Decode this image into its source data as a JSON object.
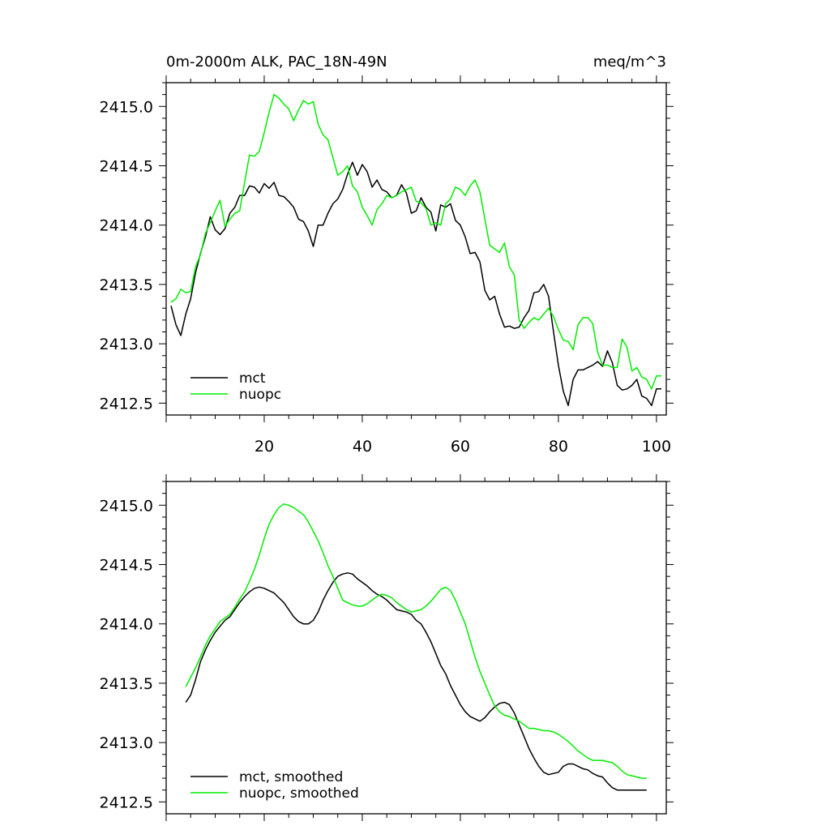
{
  "colors": {
    "mct": "#000000",
    "nuopc": "#00ee00",
    "frame": "#000000",
    "background": "#ffffff"
  },
  "header": {
    "title": "0m-2000m ALK, PAC_18N-49N",
    "units": "meq/m^3"
  },
  "chart_data": [
    {
      "type": "line",
      "title": "0m-2000m ALK, PAC_18N-49N",
      "units": "meq/m^3",
      "xlabel": "",
      "ylabel": "",
      "xlim": [
        0,
        102
      ],
      "ylim": [
        2412.4,
        2415.2
      ],
      "xticks": [
        20,
        40,
        60,
        80,
        100
      ],
      "xtick_labels": [
        "20",
        "40",
        "60",
        "80",
        "100"
      ],
      "yticks": [
        2412.5,
        2413.0,
        2413.5,
        2414.0,
        2414.5,
        2415.0
      ],
      "ytick_labels": [
        "2412.5",
        "2413.0",
        "2413.5",
        "2414.0",
        "2414.5",
        "2415.0"
      ],
      "legend": "bottom-left",
      "series": [
        {
          "name": "mct",
          "color": "#000000",
          "x": [
            1,
            2,
            3,
            4,
            5,
            6,
            7,
            8,
            9,
            10,
            11,
            12,
            13,
            14,
            15,
            16,
            17,
            18,
            19,
            20,
            21,
            22,
            23,
            24,
            25,
            26,
            27,
            28,
            29,
            30,
            31,
            32,
            33,
            34,
            35,
            36,
            37,
            38,
            39,
            40,
            41,
            42,
            43,
            44,
            45,
            46,
            47,
            48,
            49,
            50,
            51,
            52,
            53,
            54,
            55,
            56,
            57,
            58,
            59,
            60,
            61,
            62,
            63,
            64,
            65,
            66,
            67,
            68,
            69,
            70,
            71,
            72,
            73,
            74,
            75,
            76,
            77,
            78,
            79,
            80,
            81,
            82,
            83,
            84,
            85,
            86,
            87,
            88,
            89,
            90,
            91,
            92,
            93,
            94,
            95,
            96,
            97,
            98,
            99,
            100,
            101
          ],
          "values": [
            2413.32,
            2413.16,
            2413.07,
            2413.25,
            2413.38,
            2413.6,
            2413.76,
            2413.9,
            2414.07,
            2413.96,
            2413.92,
            2413.97,
            2414.1,
            2414.15,
            2414.25,
            2414.25,
            2414.33,
            2414.32,
            2414.27,
            2414.35,
            2414.31,
            2414.36,
            2414.25,
            2414.24,
            2414.2,
            2414.15,
            2414.05,
            2414.03,
            2413.95,
            2413.82,
            2414.0,
            2414.0,
            2414.1,
            2414.18,
            2414.22,
            2414.3,
            2414.43,
            2414.53,
            2414.42,
            2414.51,
            2414.45,
            2414.32,
            2414.38,
            2414.3,
            2414.28,
            2414.23,
            2414.25,
            2414.34,
            2414.27,
            2414.1,
            2414.12,
            2414.23,
            2414.15,
            2414.11,
            2413.95,
            2414.17,
            2414.15,
            2414.18,
            2414.04,
            2414.0,
            2413.9,
            2413.76,
            2413.77,
            2413.69,
            2413.45,
            2413.37,
            2413.4,
            2413.25,
            2413.14,
            2413.15,
            2413.13,
            2413.14,
            2413.22,
            2413.28,
            2413.43,
            2413.44,
            2413.5,
            2413.4,
            2413.1,
            2412.82,
            2412.6,
            2412.48,
            2412.7,
            2412.78,
            2412.78,
            2412.8,
            2412.82,
            2412.85,
            2412.81,
            2412.94,
            2412.84,
            2412.65,
            2412.61,
            2412.62,
            2412.65,
            2412.7,
            2412.56,
            2412.54,
            2412.48,
            2412.62,
            2412.62
          ]
        },
        {
          "name": "nuopc",
          "color": "#00ee00",
          "x": [
            1,
            2,
            3,
            4,
            5,
            6,
            7,
            8,
            9,
            10,
            11,
            12,
            13,
            14,
            15,
            16,
            17,
            18,
            19,
            20,
            21,
            22,
            23,
            24,
            25,
            26,
            27,
            28,
            29,
            30,
            31,
            32,
            33,
            34,
            35,
            36,
            37,
            38,
            39,
            40,
            41,
            42,
            43,
            44,
            45,
            46,
            47,
            48,
            49,
            50,
            51,
            52,
            53,
            54,
            55,
            56,
            57,
            58,
            59,
            60,
            61,
            62,
            63,
            64,
            65,
            66,
            67,
            68,
            69,
            70,
            71,
            72,
            73,
            74,
            75,
            76,
            77,
            78,
            79,
            80,
            81,
            82,
            83,
            84,
            85,
            86,
            87,
            88,
            89,
            90,
            91,
            92,
            93,
            94,
            95,
            96,
            97,
            98,
            99,
            100,
            101
          ],
          "values": [
            2413.35,
            2413.38,
            2413.46,
            2413.43,
            2413.44,
            2413.65,
            2413.75,
            2413.93,
            2414.02,
            2414.12,
            2414.21,
            2413.99,
            2414.05,
            2414.1,
            2414.12,
            2414.36,
            2414.59,
            2414.58,
            2414.62,
            2414.78,
            2414.95,
            2415.1,
            2415.07,
            2415.02,
            2414.98,
            2414.88,
            2414.97,
            2415.05,
            2415.02,
            2415.04,
            2414.85,
            2414.76,
            2414.72,
            2414.57,
            2414.42,
            2414.45,
            2414.5,
            2414.33,
            2414.28,
            2414.15,
            2414.08,
            2414.0,
            2414.13,
            2414.18,
            2414.25,
            2414.23,
            2414.25,
            2414.28,
            2414.3,
            2414.32,
            2414.2,
            2414.19,
            2414.14,
            2414.0,
            2414.02,
            2414.0,
            2414.18,
            2414.22,
            2414.32,
            2414.3,
            2414.25,
            2414.33,
            2414.38,
            2414.28,
            2414.05,
            2413.83,
            2413.8,
            2413.77,
            2413.85,
            2413.65,
            2413.58,
            2413.2,
            2413.13,
            2413.18,
            2413.22,
            2413.2,
            2413.25,
            2413.3,
            2413.23,
            2413.12,
            2413.03,
            2413.02,
            2412.95,
            2413.16,
            2413.22,
            2413.22,
            2413.17,
            2412.93,
            2412.82,
            2412.82,
            2412.8,
            2412.8,
            2413.04,
            2412.97,
            2412.77,
            2412.8,
            2412.72,
            2412.7,
            2412.62,
            2412.73,
            2412.73
          ]
        }
      ],
      "legend_labels": [
        "mct",
        "nuopc"
      ]
    },
    {
      "type": "line",
      "title": "",
      "xlabel": "",
      "ylabel": "",
      "xlim": [
        0,
        102
      ],
      "ylim": [
        2412.4,
        2415.2
      ],
      "xticks": [
        20,
        40,
        60,
        80,
        100
      ],
      "yticks": [
        2412.5,
        2413.0,
        2413.5,
        2414.0,
        2414.5,
        2415.0
      ],
      "ytick_labels": [
        "2412.5",
        "2413.0",
        "2413.5",
        "2414.0",
        "2414.5",
        "2415.0"
      ],
      "legend": "bottom-left",
      "series": [
        {
          "name": "mct, smoothed",
          "color": "#000000",
          "x": [
            4,
            5,
            6,
            7,
            8,
            9,
            10,
            11,
            12,
            13,
            14,
            15,
            16,
            17,
            18,
            19,
            20,
            21,
            22,
            23,
            24,
            25,
            26,
            27,
            28,
            29,
            30,
            31,
            32,
            33,
            34,
            35,
            36,
            37,
            38,
            39,
            40,
            41,
            42,
            43,
            44,
            45,
            46,
            47,
            48,
            49,
            50,
            51,
            52,
            53,
            54,
            55,
            56,
            57,
            58,
            59,
            60,
            61,
            62,
            63,
            64,
            65,
            66,
            67,
            68,
            69,
            70,
            71,
            72,
            73,
            74,
            75,
            76,
            77,
            78,
            79,
            80,
            81,
            82,
            83,
            84,
            85,
            86,
            87,
            88,
            89,
            90,
            91,
            92,
            93,
            94,
            95,
            96,
            97,
            98
          ],
          "values": [
            2413.34,
            2413.4,
            2413.53,
            2413.68,
            2413.78,
            2413.86,
            2413.93,
            2413.98,
            2414.03,
            2414.06,
            2414.12,
            2414.18,
            2414.23,
            2414.27,
            2414.3,
            2414.31,
            2414.3,
            2414.28,
            2414.26,
            2414.22,
            2414.18,
            2414.12,
            2414.06,
            2414.02,
            2414.0,
            2414.0,
            2414.03,
            2414.1,
            2414.2,
            2414.28,
            2414.35,
            2414.4,
            2414.42,
            2414.43,
            2414.42,
            2414.38,
            2414.35,
            2414.32,
            2414.28,
            2414.25,
            2414.23,
            2414.2,
            2414.16,
            2414.12,
            2414.11,
            2414.1,
            2414.08,
            2414.03,
            2414.0,
            2413.93,
            2413.85,
            2413.75,
            2413.65,
            2413.58,
            2413.48,
            2413.4,
            2413.32,
            2413.26,
            2413.22,
            2413.2,
            2413.18,
            2413.21,
            2413.26,
            2413.3,
            2413.33,
            2413.34,
            2413.32,
            2413.25,
            2413.15,
            2413.05,
            2412.95,
            2412.87,
            2412.8,
            2412.75,
            2412.73,
            2412.74,
            2412.75,
            2412.8,
            2412.82,
            2412.82,
            2412.8,
            2412.78,
            2412.77,
            2412.74,
            2412.72,
            2412.71,
            2412.66,
            2412.62,
            2412.6,
            2412.6,
            2412.6,
            2412.6,
            2412.6,
            2412.6,
            2412.6
          ]
        },
        {
          "name": "nuopc, smoothed",
          "color": "#00ee00",
          "x": [
            4,
            5,
            6,
            7,
            8,
            9,
            10,
            11,
            12,
            13,
            14,
            15,
            16,
            17,
            18,
            19,
            20,
            21,
            22,
            23,
            24,
            25,
            26,
            27,
            28,
            29,
            30,
            31,
            32,
            33,
            34,
            35,
            36,
            37,
            38,
            39,
            40,
            41,
            42,
            43,
            44,
            45,
            46,
            47,
            48,
            49,
            50,
            51,
            52,
            53,
            54,
            55,
            56,
            57,
            58,
            59,
            60,
            61,
            62,
            63,
            64,
            65,
            66,
            67,
            68,
            69,
            70,
            71,
            72,
            73,
            74,
            75,
            76,
            77,
            78,
            79,
            80,
            81,
            82,
            83,
            84,
            85,
            86,
            87,
            88,
            89,
            90,
            91,
            92,
            93,
            94,
            95,
            96,
            97,
            98
          ],
          "values": [
            2413.47,
            2413.55,
            2413.63,
            2413.72,
            2413.82,
            2413.9,
            2413.96,
            2414.02,
            2414.05,
            2414.08,
            2414.14,
            2414.21,
            2414.27,
            2414.36,
            2414.46,
            2414.58,
            2414.72,
            2414.84,
            2414.92,
            2414.98,
            2415.01,
            2415.0,
            2414.98,
            2414.95,
            2414.92,
            2414.86,
            2414.78,
            2414.7,
            2414.6,
            2414.49,
            2414.4,
            2414.3,
            2414.2,
            2414.18,
            2414.16,
            2414.15,
            2414.15,
            2414.17,
            2414.2,
            2414.23,
            2414.25,
            2414.24,
            2414.22,
            2414.18,
            2414.15,
            2414.12,
            2414.1,
            2414.11,
            2414.12,
            2414.15,
            2414.19,
            2414.24,
            2414.29,
            2414.31,
            2414.28,
            2414.2,
            2414.1,
            2414.0,
            2413.86,
            2413.72,
            2413.6,
            2413.5,
            2413.4,
            2413.31,
            2413.26,
            2413.23,
            2413.22,
            2413.2,
            2413.18,
            2413.15,
            2413.12,
            2413.12,
            2413.11,
            2413.1,
            2413.1,
            2413.09,
            2413.07,
            2413.04,
            2413.01,
            2412.97,
            2412.93,
            2412.9,
            2412.87,
            2412.85,
            2412.85,
            2412.85,
            2412.84,
            2412.83,
            2412.8,
            2412.76,
            2412.73,
            2412.72,
            2412.71,
            2412.7,
            2412.7
          ]
        }
      ],
      "legend_labels": [
        "mct, smoothed",
        "nuopc, smoothed"
      ]
    }
  ]
}
